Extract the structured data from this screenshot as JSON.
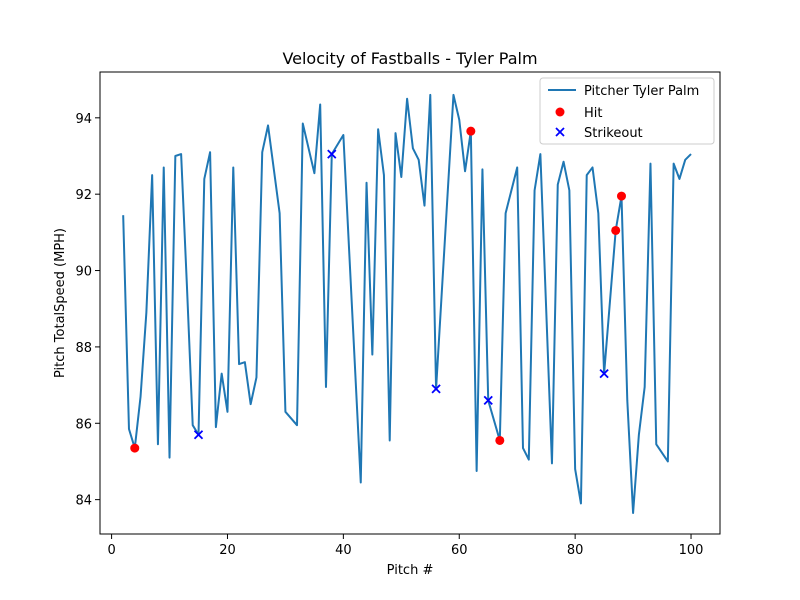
{
  "chart_data": {
    "type": "line",
    "title": "Velocity of Fastballs - Tyler Palm",
    "xlabel": "Pitch #",
    "ylabel": "Pitch TotalSpeed (MPH)",
    "xlim": [
      -2,
      105
    ],
    "ylim": [
      83.1,
      95.2
    ],
    "xticks": [
      0,
      20,
      40,
      60,
      80,
      100
    ],
    "yticks": [
      84,
      86,
      88,
      90,
      92,
      94
    ],
    "grid": false,
    "legend_position": "top-right",
    "colors": {
      "line": "#1f77b4",
      "hit": "#ff0000",
      "strikeout": "#0000ff"
    },
    "series": [
      {
        "name": "Pitcher Tyler Palm",
        "kind": "line",
        "points": [
          [
            2,
            91.45
          ],
          [
            3,
            85.85
          ],
          [
            4,
            85.35
          ],
          [
            5,
            86.7
          ],
          [
            6,
            88.9
          ],
          [
            7,
            92.5
          ],
          [
            8,
            85.45
          ],
          [
            9,
            92.7
          ],
          [
            10,
            85.1
          ],
          [
            11,
            93.0
          ],
          [
            12,
            93.05
          ],
          [
            13,
            89.6
          ],
          [
            14,
            85.95
          ],
          [
            15,
            85.7
          ],
          [
            16,
            92.4
          ],
          [
            17,
            93.1
          ],
          [
            18,
            85.9
          ],
          [
            19,
            87.3
          ],
          [
            20,
            86.3
          ],
          [
            21,
            92.7
          ],
          [
            22,
            87.55
          ],
          [
            23,
            87.6
          ],
          [
            24,
            86.5
          ],
          [
            25,
            87.2
          ],
          [
            26,
            93.1
          ],
          [
            27,
            93.8
          ],
          [
            29,
            91.5
          ],
          [
            30,
            86.3
          ],
          [
            32,
            85.95
          ],
          [
            33,
            93.85
          ],
          [
            35,
            92.55
          ],
          [
            36,
            94.35
          ],
          [
            37,
            86.95
          ],
          [
            38,
            93.05
          ],
          [
            40,
            93.55
          ],
          [
            43,
            84.45
          ],
          [
            44,
            92.3
          ],
          [
            45,
            87.8
          ],
          [
            46,
            93.7
          ],
          [
            47,
            92.5
          ],
          [
            48,
            85.55
          ],
          [
            49,
            93.6
          ],
          [
            50,
            92.45
          ],
          [
            51,
            94.5
          ],
          [
            52,
            93.2
          ],
          [
            53,
            92.9
          ],
          [
            54,
            91.7
          ],
          [
            55,
            94.6
          ],
          [
            56,
            86.9
          ],
          [
            59,
            94.6
          ],
          [
            60,
            93.95
          ],
          [
            61,
            92.6
          ],
          [
            62,
            93.65
          ],
          [
            63,
            84.75
          ],
          [
            64,
            92.65
          ],
          [
            65,
            86.6
          ],
          [
            67,
            85.55
          ],
          [
            68,
            91.5
          ],
          [
            70,
            92.7
          ],
          [
            71,
            85.35
          ],
          [
            72,
            85.05
          ],
          [
            73,
            92.1
          ],
          [
            74,
            93.05
          ],
          [
            76,
            84.95
          ],
          [
            77,
            92.25
          ],
          [
            78,
            92.85
          ],
          [
            79,
            92.1
          ],
          [
            80,
            84.8
          ],
          [
            81,
            83.9
          ],
          [
            82,
            92.5
          ],
          [
            83,
            92.7
          ],
          [
            84,
            91.5
          ],
          [
            85,
            87.3
          ],
          [
            87,
            91.05
          ],
          [
            88,
            91.95
          ],
          [
            89,
            86.6
          ],
          [
            90,
            83.65
          ],
          [
            91,
            85.7
          ],
          [
            92,
            86.95
          ],
          [
            93,
            92.8
          ],
          [
            94,
            85.45
          ],
          [
            96,
            85.0
          ],
          [
            97,
            92.8
          ],
          [
            98,
            92.4
          ],
          [
            99,
            92.9
          ],
          [
            100,
            93.05
          ]
        ]
      },
      {
        "name": "Hit",
        "kind": "scatter",
        "marker": "circle",
        "points": [
          [
            4,
            85.35
          ],
          [
            62,
            93.65
          ],
          [
            67,
            85.55
          ],
          [
            87,
            91.05
          ],
          [
            88,
            91.95
          ]
        ]
      },
      {
        "name": "Strikeout",
        "kind": "scatter",
        "marker": "x",
        "points": [
          [
            15,
            85.7
          ],
          [
            38,
            93.05
          ],
          [
            56,
            86.9
          ],
          [
            65,
            86.6
          ],
          [
            85,
            87.3
          ]
        ]
      }
    ]
  }
}
